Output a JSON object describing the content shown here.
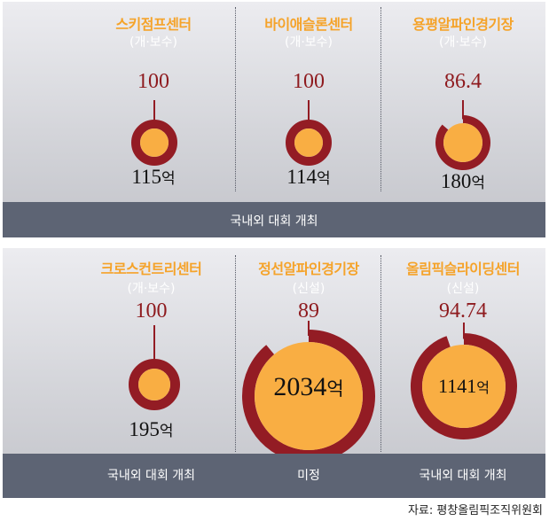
{
  "chart_data": [
    {
      "type": "donut",
      "footer": "국내외 대회 개최",
      "venues": [
        {
          "name": "스키점프센터",
          "category": "(개·보수)",
          "rate": 100,
          "rate_label": "100",
          "cost": 115,
          "cost_label": "115",
          "unit": "억"
        },
        {
          "name": "바이애슬론센터",
          "category": "(개·보수)",
          "rate": 100,
          "rate_label": "100",
          "cost": 114,
          "cost_label": "114",
          "unit": "억"
        },
        {
          "name": "용평알파인경기장",
          "category": "(개·보수)",
          "rate": 86.4,
          "rate_label": "86.4",
          "cost": 180,
          "cost_label": "180",
          "unit": "억"
        }
      ]
    },
    {
      "type": "donut",
      "venues": [
        {
          "name": "크로스컨트리센터",
          "category": "(개·보수)",
          "rate": 100,
          "rate_label": "100",
          "cost": 195,
          "cost_label": "195",
          "unit": "억",
          "footer": "국내외 대회 개최"
        },
        {
          "name": "정선알파인경기장",
          "category": "(신설)",
          "rate": 89,
          "rate_label": "89",
          "cost": 2034,
          "cost_label": "2034",
          "unit": "억",
          "footer": "미정"
        },
        {
          "name": "올림픽슬라이딩센터",
          "category": "(신설)",
          "rate": 94.74,
          "rate_label": "94.74",
          "cost": 1141,
          "cost_label": "1141",
          "unit": "억",
          "footer": "국내외 대회 개최"
        }
      ]
    }
  ],
  "colors": {
    "ring": "#931c24",
    "fill": "#f9ae43",
    "title": "#f5a32a",
    "rate": "#8e1a1e",
    "footer": "#5d6474"
  },
  "source": "자료: 평창올림픽조직위원회"
}
